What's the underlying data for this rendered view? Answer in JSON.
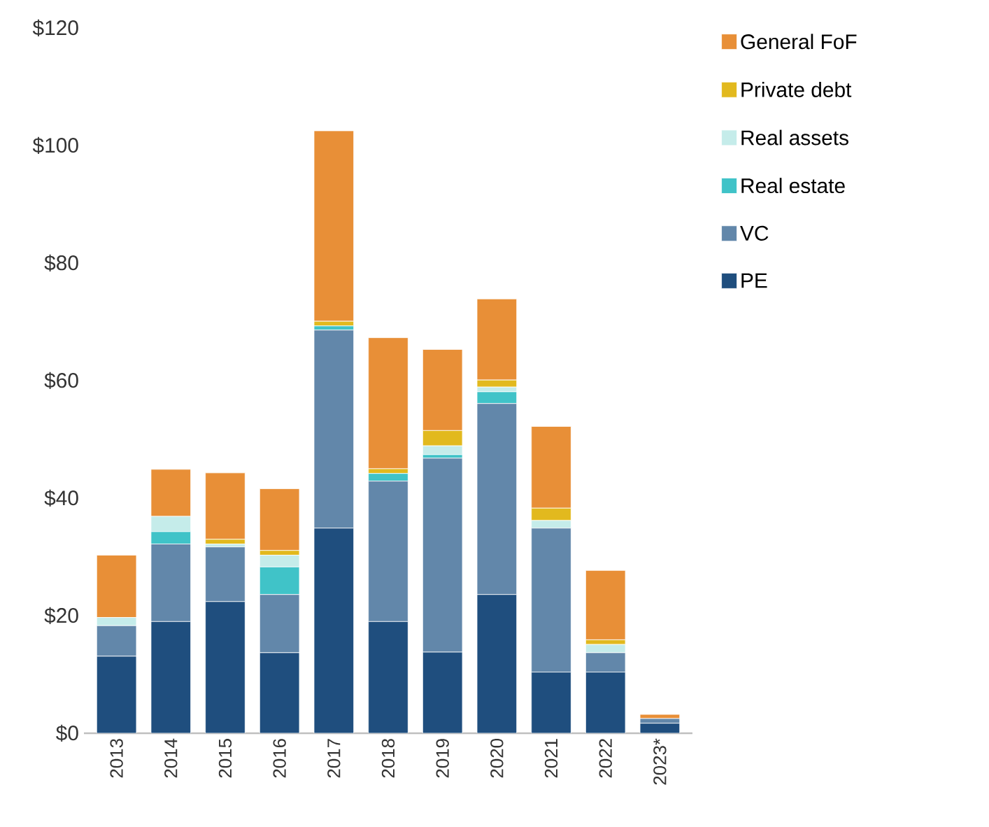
{
  "chart_data": {
    "type": "bar",
    "stacked": true,
    "legend": "right",
    "categories": [
      "2013",
      "2014",
      "2015",
      "2016",
      "2017",
      "2018",
      "2019",
      "2020",
      "2021",
      "2022",
      "2023*"
    ],
    "ylim": [
      0,
      120
    ],
    "yticks": [
      {
        "value": 0,
        "label": "$0"
      },
      {
        "value": 20,
        "label": "$20"
      },
      {
        "value": 40,
        "label": "$40"
      },
      {
        "value": 60,
        "label": "$60"
      },
      {
        "value": 80,
        "label": "$80"
      },
      {
        "value": 100,
        "label": "$100"
      },
      {
        "value": 120,
        "label": "$120"
      }
    ],
    "series": [
      {
        "name": "PE",
        "color": "#1f4e7e",
        "values": [
          13.1,
          19.0,
          22.4,
          13.7,
          34.9,
          19.0,
          13.8,
          23.6,
          10.4,
          10.4,
          1.7
        ]
      },
      {
        "name": "VC",
        "color": "#6287aa",
        "values": [
          5.2,
          13.2,
          9.3,
          9.9,
          33.7,
          23.9,
          33.0,
          32.5,
          24.5,
          3.3,
          0.8
        ]
      },
      {
        "name": "Real estate",
        "color": "#40c3c8",
        "values": [
          0,
          2.1,
          0,
          4.7,
          0.7,
          1.3,
          0.6,
          2.0,
          0,
          0,
          0
        ]
      },
      {
        "name": "Real assets",
        "color": "#c5ecea",
        "values": [
          1.4,
          2.6,
          0.5,
          2.0,
          0,
          0,
          1.5,
          0.8,
          1.3,
          1.4,
          0
        ]
      },
      {
        "name": "Private debt",
        "color": "#e2b91e",
        "values": [
          0,
          0,
          0.8,
          0.8,
          0.8,
          0.8,
          2.6,
          1.2,
          2.1,
          0.8,
          0
        ]
      },
      {
        "name": "General FoF",
        "color": "#e88f37",
        "values": [
          10.6,
          8.0,
          11.3,
          10.5,
          32.4,
          22.3,
          13.8,
          13.8,
          13.9,
          11.8,
          0.7
        ]
      }
    ]
  }
}
